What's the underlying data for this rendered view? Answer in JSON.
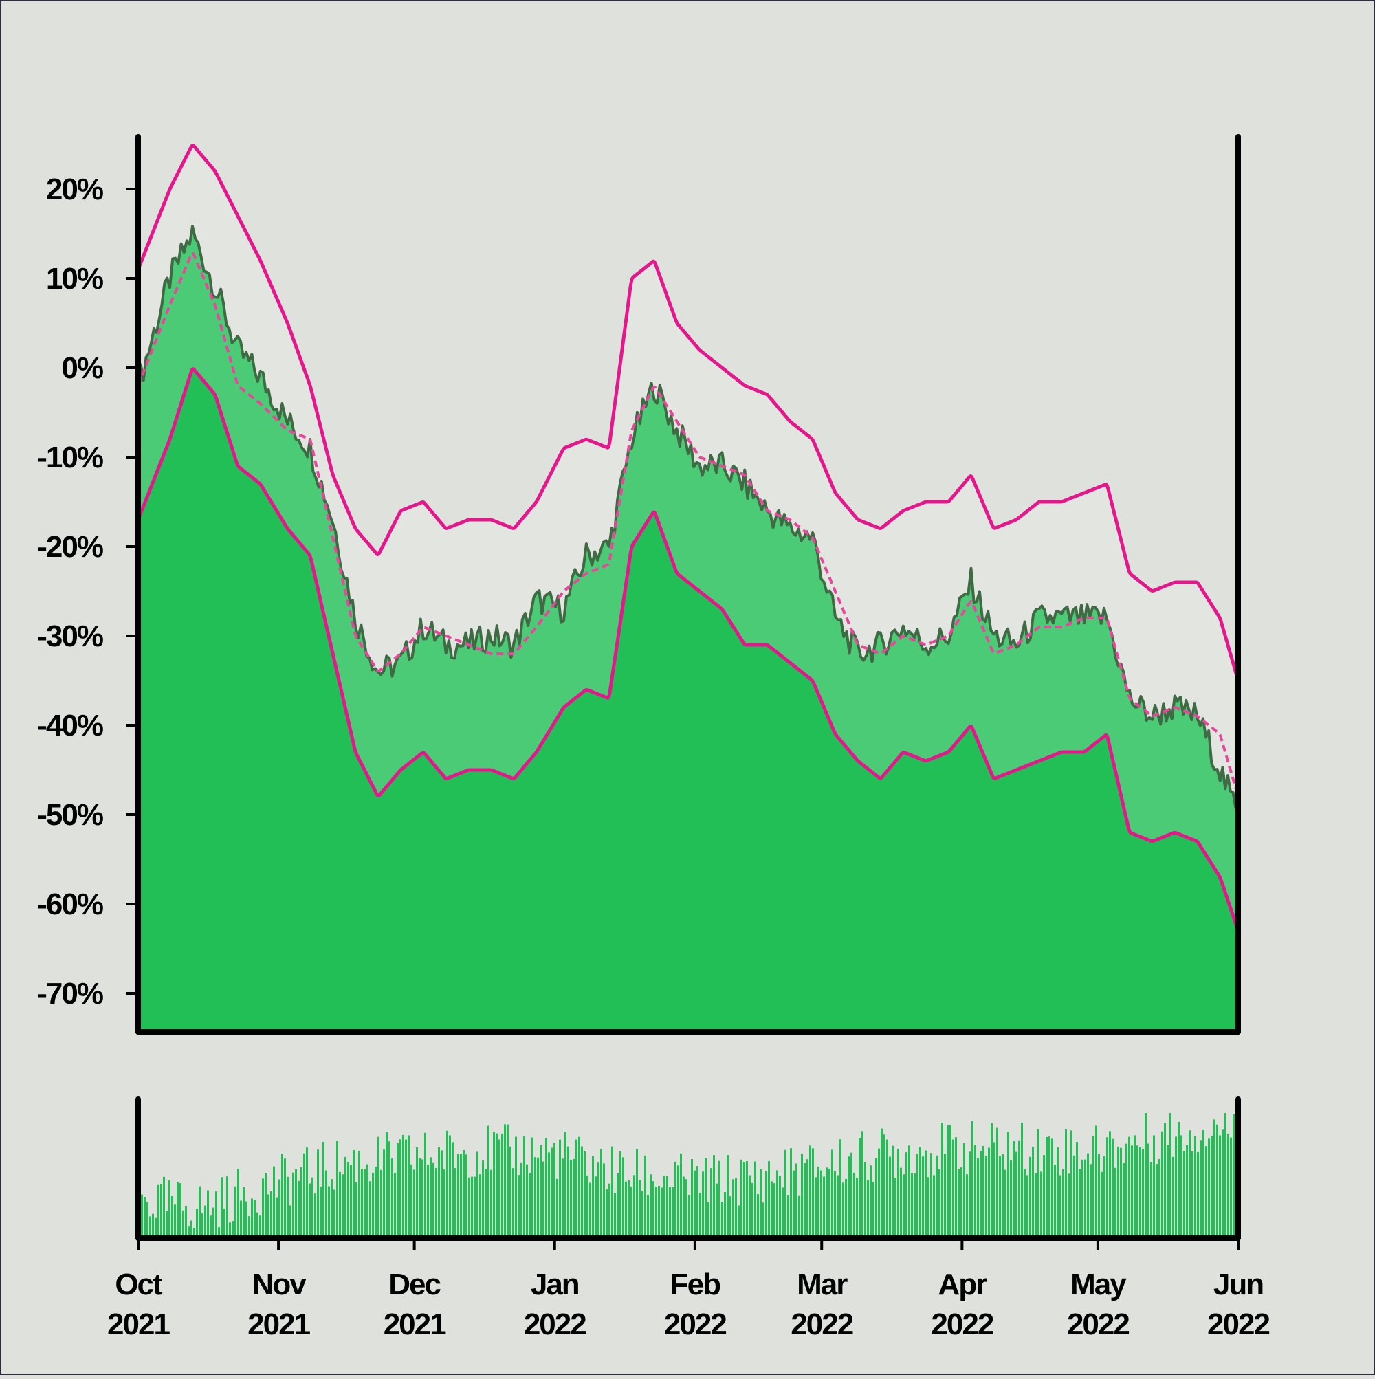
{
  "chart_data": [
    {
      "type": "area",
      "title": "",
      "xlabel": "",
      "ylabel": "",
      "ylim": [
        -74,
        26
      ],
      "x_range": [
        "2021-10-01",
        "2022-06-01"
      ],
      "grid": false,
      "legend": "none",
      "y_ticks": [
        20,
        10,
        0,
        -10,
        -20,
        -30,
        -40,
        -50,
        -60,
        -70
      ],
      "y_tick_labels": [
        "20%",
        "10%",
        "0%",
        "-10%",
        "-20%",
        "-30%",
        "-40%",
        "-50%",
        "-60%",
        "-70%"
      ],
      "x": [
        "2021-10-01",
        "2021-10-08",
        "2021-10-13",
        "2021-10-18",
        "2021-10-23",
        "2021-10-28",
        "2021-11-03",
        "2021-11-08",
        "2021-11-13",
        "2021-11-18",
        "2021-11-23",
        "2021-11-28",
        "2021-12-03",
        "2021-12-08",
        "2021-12-13",
        "2021-12-18",
        "2021-12-23",
        "2021-12-28",
        "2022-01-03",
        "2022-01-08",
        "2022-01-13",
        "2022-01-18",
        "2022-01-23",
        "2022-01-28",
        "2022-02-02",
        "2022-02-07",
        "2022-02-12",
        "2022-02-17",
        "2022-02-22",
        "2022-02-27",
        "2022-03-04",
        "2022-03-09",
        "2022-03-14",
        "2022-03-19",
        "2022-03-24",
        "2022-03-29",
        "2022-04-03",
        "2022-04-08",
        "2022-04-13",
        "2022-04-18",
        "2022-04-23",
        "2022-04-28",
        "2022-05-03",
        "2022-05-08",
        "2022-05-13",
        "2022-05-18",
        "2022-05-23",
        "2022-05-28",
        "2022-06-01"
      ],
      "series": [
        {
          "role": "daily-value",
          "color": "#3f6b44",
          "values": [
            -2,
            10,
            15,
            9,
            2,
            -1,
            -6,
            -9,
            -17,
            -28,
            -34,
            -33,
            -29,
            -31,
            -31,
            -30,
            -31,
            -26,
            -27,
            -21,
            -20,
            -8,
            -2,
            -7,
            -11,
            -11,
            -13,
            -16,
            -18,
            -19,
            -28,
            -32,
            -31,
            -29,
            -31,
            -30,
            -24,
            -30,
            -31,
            -28,
            -28,
            -28,
            -28,
            -37,
            -39,
            -38,
            -39,
            -45,
            -50
          ]
        },
        {
          "role": "moving-average",
          "color": "#e8479e",
          "style": "dashed",
          "values": [
            -2,
            7,
            13,
            7,
            -2,
            -4,
            -7,
            -8,
            -19,
            -30,
            -34,
            -32,
            -29,
            -30,
            -31,
            -32,
            -32,
            -29,
            -25,
            -23,
            -22,
            -7,
            -2,
            -6,
            -10,
            -11,
            -12,
            -16,
            -17,
            -19,
            -25,
            -31,
            -32,
            -30,
            -31,
            -30,
            -26,
            -32,
            -31,
            -29,
            -29,
            -28,
            -28,
            -37,
            -39,
            -38,
            -39,
            -41,
            -48
          ]
        },
        {
          "role": "upper-band",
          "color": "#e5178c",
          "values": [
            11,
            20,
            25,
            22,
            17,
            12,
            5,
            -2,
            -12,
            -18,
            -21,
            -16,
            -15,
            -18,
            -17,
            -17,
            -18,
            -15,
            -9,
            -8,
            -9,
            10,
            12,
            5,
            2,
            0,
            -2,
            -3,
            -6,
            -8,
            -14,
            -17,
            -18,
            -16,
            -15,
            -15,
            -12,
            -18,
            -17,
            -15,
            -15,
            -14,
            -13,
            -23,
            -25,
            -24,
            -24,
            -28,
            -35
          ]
        },
        {
          "role": "lower-band",
          "color": "#e5178c",
          "values": [
            -17,
            -8,
            0,
            -3,
            -11,
            -13,
            -18,
            -21,
            -32,
            -43,
            -48,
            -45,
            -43,
            -46,
            -45,
            -45,
            -46,
            -43,
            -38,
            -36,
            -37,
            -20,
            -16,
            -23,
            -25,
            -27,
            -31,
            -31,
            -33,
            -35,
            -41,
            -44,
            -46,
            -43,
            -44,
            -43,
            -40,
            -46,
            -45,
            -44,
            -43,
            -43,
            -41,
            -52,
            -53,
            -52,
            -53,
            -57,
            -63
          ]
        }
      ],
      "x_tick_labels": [
        {
          "month": "Oct",
          "year": "2021"
        },
        {
          "month": "Nov",
          "year": "2021"
        },
        {
          "month": "Dec",
          "year": "2021"
        },
        {
          "month": "Jan",
          "year": "2022"
        },
        {
          "month": "Feb",
          "year": "2022"
        },
        {
          "month": "Mar",
          "year": "2022"
        },
        {
          "month": "Apr",
          "year": "2022"
        },
        {
          "month": "May",
          "year": "2022"
        },
        {
          "month": "Jun",
          "year": "2022"
        }
      ]
    },
    {
      "type": "bar",
      "title": "",
      "xlabel": "",
      "ylabel": "",
      "color": "#22bf55",
      "x_range": [
        "2021-10-01",
        "2022-06-01"
      ],
      "x": [
        "2021-10-01",
        "2021-10-15",
        "2021-11-01",
        "2021-11-15",
        "2021-12-01",
        "2021-12-15",
        "2022-01-01",
        "2022-01-15",
        "2022-02-01",
        "2022-02-15",
        "2022-03-01",
        "2022-03-15",
        "2022-04-01",
        "2022-04-15",
        "2022-05-01",
        "2022-05-15",
        "2022-06-01"
      ],
      "values": [
        0.3,
        0.25,
        0.45,
        0.6,
        0.65,
        0.7,
        0.68,
        0.52,
        0.45,
        0.48,
        0.58,
        0.68,
        0.72,
        0.72,
        0.7,
        0.82,
        0.92
      ]
    }
  ]
}
